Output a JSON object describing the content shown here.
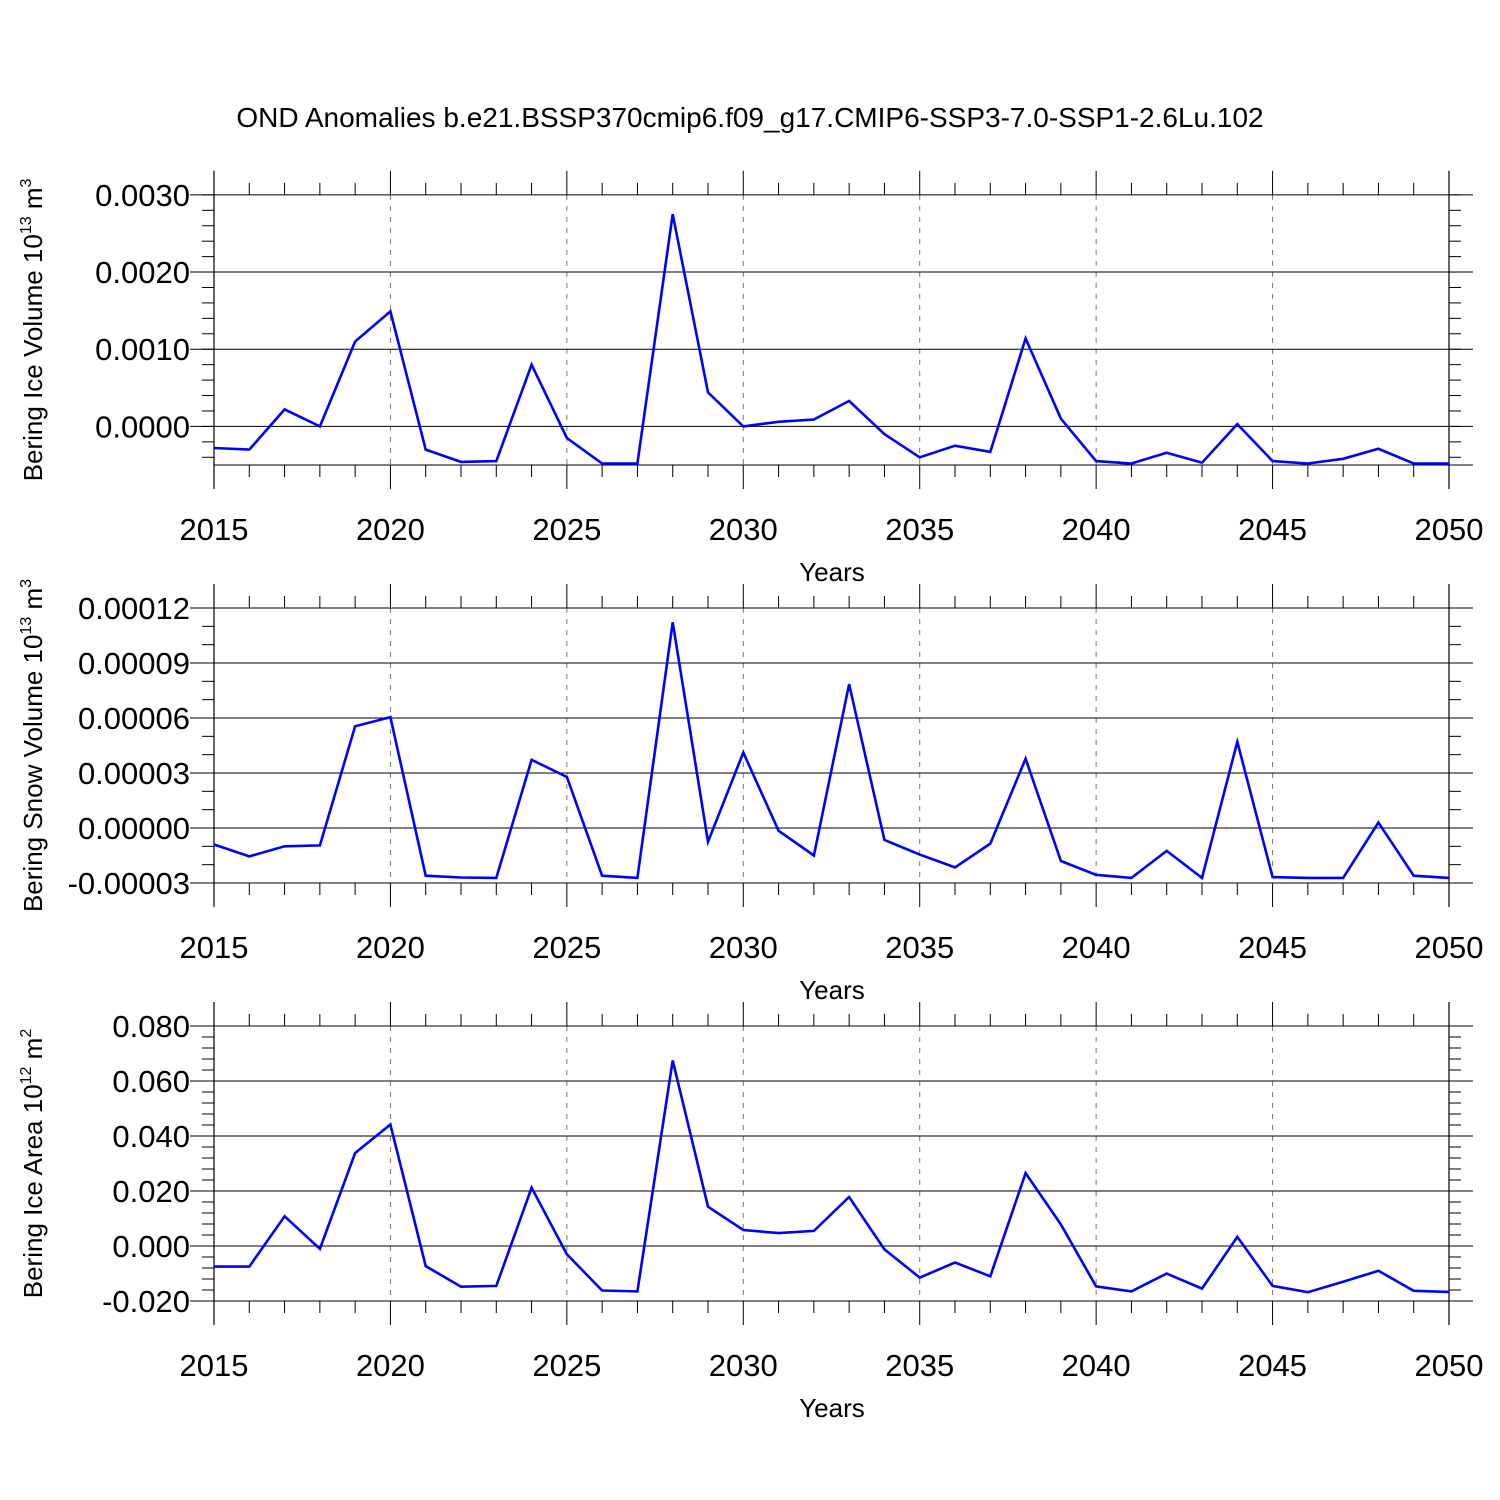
{
  "figure": {
    "title": "OND Anomalies b.e21.BSSP370cmip6.f09_g17.CMIP6-SSP3-7.0-SSP1-2.6Lu.102",
    "line_color": "#0000ff"
  },
  "chart_data": [
    {
      "type": "line",
      "ylabel": "Bering Ice Volume 10",
      "ylabel_sup": "13",
      "ylabel_unit": "m",
      "ylabel_unit_sup": "3",
      "xlabel": "Years",
      "xlim": [
        2015,
        2050
      ],
      "ylim": [
        -0.0005,
        0.00305
      ],
      "x_ticks": [
        2015,
        2020,
        2025,
        2030,
        2035,
        2040,
        2045,
        2050
      ],
      "x_tick_labels": [
        "2015",
        "2020",
        "2025",
        "2030",
        "2035",
        "2040",
        "2045",
        "2050"
      ],
      "y_ticks": [
        0.0,
        0.001,
        0.002,
        0.003
      ],
      "y_tick_labels": [
        "0.0000",
        "0.0010",
        "0.0020",
        "0.0030"
      ],
      "y_minor_step": 0.0002,
      "grid": "vertical-dashed",
      "series": [
        {
          "x": [
            2015,
            2016,
            2017,
            2018,
            2019,
            2020,
            2021,
            2022,
            2023,
            2024,
            2025,
            2026,
            2027,
            2028,
            2029,
            2030,
            2031,
            2032,
            2033,
            2034,
            2035,
            2036,
            2037,
            2038,
            2039,
            2040,
            2041,
            2042,
            2043,
            2044,
            2045,
            2046,
            2047,
            2048,
            2049,
            2050
          ],
          "values": [
            -0.00028,
            -0.0003,
            0.00022,
            0.0,
            0.0011,
            0.00149,
            -0.0003,
            -0.00046,
            -0.00045,
            0.0008,
            -0.00015,
            -0.00048,
            -0.00048,
            0.00275,
            0.00044,
            0.0,
            6e-05,
            9e-05,
            0.00033,
            -0.0001,
            -0.0004,
            -0.00025,
            -0.00033,
            0.00114,
            0.0001,
            -0.00045,
            -0.00048,
            -0.00034,
            -0.00047,
            3e-05,
            -0.00045,
            -0.00048,
            -0.00042,
            -0.00029,
            -0.00048,
            -0.00048
          ]
        }
      ]
    },
    {
      "type": "line",
      "ylabel": "Bering Snow Volume 10",
      "ylabel_sup": "13",
      "ylabel_unit": "m",
      "ylabel_unit_sup": "3",
      "xlabel": "Years",
      "xlim": [
        2015,
        2050
      ],
      "ylim": [
        -3e-05,
        0.00012
      ],
      "x_ticks": [
        2015,
        2020,
        2025,
        2030,
        2035,
        2040,
        2045,
        2050
      ],
      "x_tick_labels": [
        "2015",
        "2020",
        "2025",
        "2030",
        "2035",
        "2040",
        "2045",
        "2050"
      ],
      "y_ticks": [
        -3e-05,
        0.0,
        3e-05,
        6e-05,
        9e-05,
        0.00012
      ],
      "y_tick_labels": [
        "-0.00003",
        "0.00000",
        "0.00003",
        "0.00006",
        "0.00009",
        "0.00012"
      ],
      "y_minor_step": 1e-05,
      "grid": "vertical-dashed",
      "series": [
        {
          "x": [
            2015,
            2016,
            2017,
            2018,
            2019,
            2020,
            2021,
            2022,
            2023,
            2024,
            2025,
            2026,
            2027,
            2028,
            2029,
            2030,
            2031,
            2032,
            2033,
            2034,
            2035,
            2036,
            2037,
            2038,
            2039,
            2040,
            2041,
            2042,
            2043,
            2044,
            2045,
            2046,
            2047,
            2048,
            2049,
            2050
          ],
          "values": [
            -9e-06,
            -1.55e-05,
            -1e-05,
            -9.5e-06,
            5.55e-05,
            6.05e-05,
            -2.6e-05,
            -2.7e-05,
            -2.72e-05,
            3.72e-05,
            2.78e-05,
            -2.6e-05,
            -2.72e-05,
            0.0001122,
            -7.5e-06,
            4.12e-05,
            -1.5e-06,
            -1.5e-05,
            7.85e-05,
            -6.5e-06,
            -1.45e-05,
            -2.15e-05,
            -8.5e-06,
            3.78e-05,
            -1.8e-05,
            -2.55e-05,
            -2.72e-05,
            -1.25e-05,
            -2.72e-05,
            4.7e-05,
            -2.68e-05,
            -2.72e-05,
            -2.72e-05,
            3e-06,
            -2.6e-05,
            -2.72e-05
          ]
        }
      ]
    },
    {
      "type": "line",
      "ylabel": "Bering Ice Area 10",
      "ylabel_sup": "12",
      "ylabel_unit": "m",
      "ylabel_unit_sup": "2",
      "xlabel": "Years",
      "xlim": [
        2015,
        2050
      ],
      "ylim": [
        -0.02,
        0.08
      ],
      "x_ticks": [
        2015,
        2020,
        2025,
        2030,
        2035,
        2040,
        2045,
        2050
      ],
      "x_tick_labels": [
        "2015",
        "2020",
        "2025",
        "2030",
        "2035",
        "2040",
        "2045",
        "2050"
      ],
      "y_ticks": [
        -0.02,
        0.0,
        0.02,
        0.04,
        0.06,
        0.08
      ],
      "y_tick_labels": [
        "-0.020",
        "0.000",
        "0.020",
        "0.040",
        "0.060",
        "0.080"
      ],
      "y_minor_step": 0.004,
      "grid": "vertical-dashed",
      "series": [
        {
          "x": [
            2015,
            2016,
            2017,
            2018,
            2019,
            2020,
            2021,
            2022,
            2023,
            2024,
            2025,
            2026,
            2027,
            2028,
            2029,
            2030,
            2031,
            2032,
            2033,
            2034,
            2035,
            2036,
            2037,
            2038,
            2039,
            2040,
            2041,
            2042,
            2043,
            2044,
            2045,
            2046,
            2047,
            2048,
            2049,
            2050
          ],
          "values": [
            -0.0075,
            -0.0075,
            0.0108,
            -0.001,
            0.0338,
            0.0442,
            -0.0073,
            -0.0148,
            -0.0145,
            0.0212,
            -0.003,
            -0.0162,
            -0.0165,
            0.0675,
            0.0143,
            0.0058,
            0.0047,
            0.0055,
            0.0178,
            -0.0012,
            -0.0115,
            -0.006,
            -0.011,
            0.0265,
            0.0078,
            -0.0147,
            -0.0165,
            -0.01,
            -0.0155,
            0.0033,
            -0.0145,
            -0.0168,
            -0.013,
            -0.009,
            -0.0163,
            -0.0167
          ]
        }
      ]
    }
  ]
}
